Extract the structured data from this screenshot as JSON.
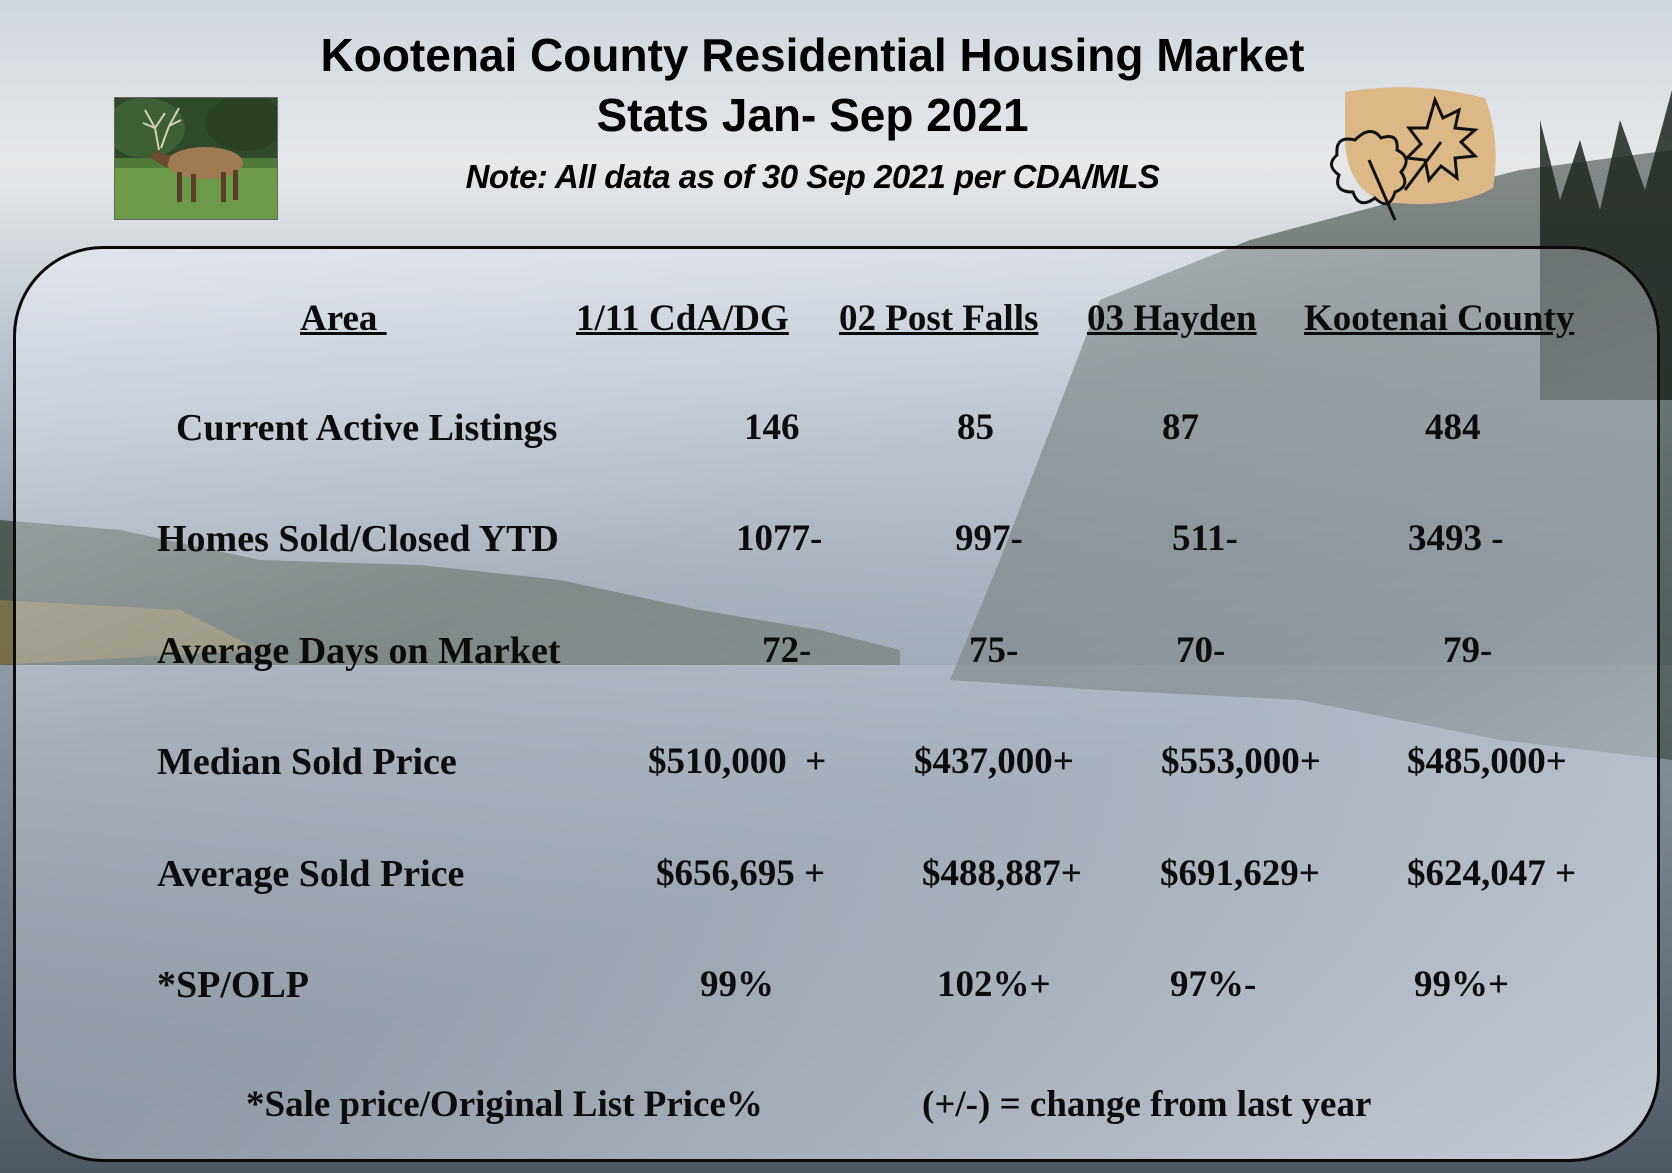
{
  "header": {
    "title_line1": "Kootenai County Residential Housing Market",
    "title_line2": "Stats Jan- Sep 2021",
    "note": "Note: All data as of  30 Sep 2021 per  CDA/MLS"
  },
  "table": {
    "columns": [
      "Area ",
      "1/11 CdA/DG",
      "02 Post Falls",
      "03 Hayden",
      "Kootenai County"
    ],
    "rows": [
      {
        "label": "Current Active Listings",
        "values": [
          "146",
          "85",
          "87",
          "484"
        ]
      },
      {
        "label": "Homes Sold/Closed YTD",
        "values": [
          "1077-",
          "997-",
          "511-",
          "3493 -"
        ]
      },
      {
        "label": "Average Days on Market",
        "values": [
          "72-",
          "75-",
          "70-",
          "79-"
        ]
      },
      {
        "label": "Median Sold Price",
        "values": [
          "$510,000  +",
          "$437,000+",
          "$553,000+",
          "$485,000+"
        ]
      },
      {
        "label": "Average Sold Price",
        "values": [
          "$656,695 +",
          "$488,887+",
          "$691,629+",
          "$624,047 +"
        ]
      },
      {
        "label": "*SP/OLP",
        "values": [
          "99%",
          "102%+",
          "97%-",
          "99%+"
        ]
      }
    ]
  },
  "footer": {
    "footnote": "*Sale price/Original List Price%",
    "legend": "(+/-) = change from last year"
  }
}
